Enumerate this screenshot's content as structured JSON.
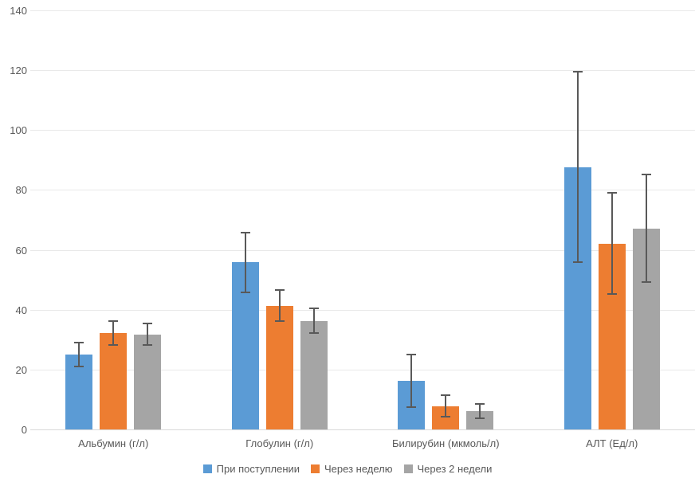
{
  "chart_data": {
    "type": "bar",
    "title": "",
    "categories": [
      "Альбумин (г/л)",
      "Глобулин (г/л)",
      "Билирубин (мкмоль/л)",
      "АЛТ (Ед/л)"
    ],
    "series": [
      {
        "name": "При поступлении",
        "color": "#5B9BD5",
        "values": [
          25.1,
          55.8,
          16.3,
          87.7
        ],
        "errors": [
          4.0,
          10.0,
          8.8,
          31.8
        ]
      },
      {
        "name": "Через неделю",
        "color": "#ED7D31",
        "values": [
          32.2,
          41.3,
          7.8,
          62.1
        ],
        "errors": [
          4.0,
          5.2,
          3.6,
          16.9
        ]
      },
      {
        "name": "Через 2 недели",
        "color": "#A5A5A5",
        "values": [
          31.8,
          36.3,
          6.2,
          67.2
        ],
        "errors": [
          3.5,
          4.1,
          2.4,
          18.0
        ]
      }
    ],
    "xlabel": "",
    "ylabel": "",
    "ylim": [
      0,
      140
    ],
    "y_ticks": [
      0,
      20,
      40,
      60,
      80,
      100,
      120,
      140
    ],
    "grid": true,
    "legend_position": "bottom",
    "style": {
      "error_bar_color": "#595959",
      "gridline_color": "#E9E9E9",
      "axis_line_color": "#D9D9D9",
      "text_color": "#595959",
      "background": "#FFFFFF"
    }
  }
}
